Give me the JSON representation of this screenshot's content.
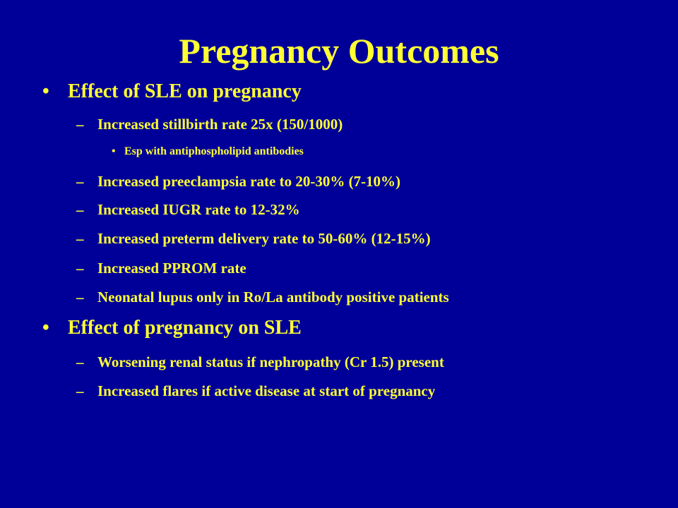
{
  "slide": {
    "title": "Pregnancy Outcomes",
    "colors": {
      "background": "#000099",
      "text": "#ffff33"
    },
    "section1": {
      "bullet": "•",
      "heading": "Effect of SLE on pregnancy",
      "dash": "–",
      "items": [
        "Increased stillbirth rate 25x  (150/1000)",
        "Increased preeclampsia rate to 20-30% (7-10%)",
        "Increased IUGR rate to 12-32%",
        "Increased preterm delivery rate to 50-60% (12-15%)",
        "Increased PPROM rate",
        "Neonatal lupus only in Ro/La antibody positive patients"
      ],
      "subitem": {
        "bullet": "•",
        "text": "Esp with antiphospholipid antibodies"
      }
    },
    "section2": {
      "bullet": "•",
      "heading": "Effect of pregnancy on SLE",
      "dash": "–",
      "items": [
        "Worsening renal status if nephropathy (Cr 1.5) present",
        "Increased flares if active disease at start of pregnancy"
      ]
    }
  }
}
